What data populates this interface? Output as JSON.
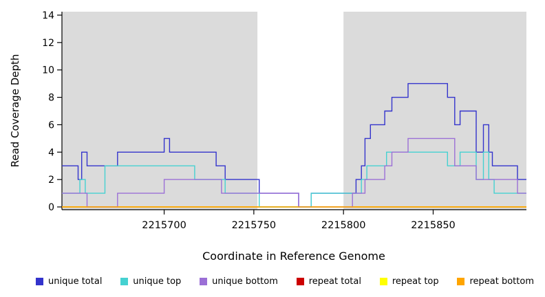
{
  "chart_data": {
    "type": "line",
    "style": "step",
    "title": "",
    "xlabel": "Coordinate in Reference Genome",
    "ylabel": "Read Coverage Depth",
    "xlim": [
      2215643,
      2215902
    ],
    "ylim": [
      0,
      14
    ],
    "yticks": [
      0,
      2,
      4,
      6,
      8,
      10,
      12,
      14
    ],
    "xticks": [
      2215700,
      2215750,
      2215800,
      2215850
    ],
    "grid": false,
    "shade_color": "#DBDBDB",
    "shaded_regions": [
      [
        2215643,
        2215752
      ],
      [
        2215800,
        2215902
      ]
    ],
    "legend_position": "bottom",
    "legend": [
      {
        "label": "unique total",
        "color": "#3333CC"
      },
      {
        "label": "unique top",
        "color": "#45D1D1"
      },
      {
        "label": "unique bottom",
        "color": "#9B6FD6"
      },
      {
        "label": "repeat total",
        "color": "#CC0000"
      },
      {
        "label": "repeat top",
        "color": "#FFFF00"
      },
      {
        "label": "repeat bottom",
        "color": "#FFA500"
      }
    ],
    "series": [
      {
        "name": "repeat total",
        "color": "#CC0000",
        "points": [
          [
            2215643,
            0
          ]
        ]
      },
      {
        "name": "repeat top",
        "color": "#FFFF00",
        "points": [
          [
            2215643,
            0
          ]
        ]
      },
      {
        "name": "unique total",
        "color": "#3333CC",
        "points": [
          [
            2215643,
            3
          ],
          [
            2215652,
            2
          ],
          [
            2215654,
            4
          ],
          [
            2215657,
            3
          ],
          [
            2215674,
            4
          ],
          [
            2215700,
            5
          ],
          [
            2215703,
            4
          ],
          [
            2215729,
            3
          ],
          [
            2215734,
            2
          ],
          [
            2215753,
            1
          ],
          [
            2215775,
            0
          ],
          [
            2215782,
            1
          ],
          [
            2215807,
            2
          ],
          [
            2215810,
            3
          ],
          [
            2215812,
            5
          ],
          [
            2215815,
            6
          ],
          [
            2215823,
            7
          ],
          [
            2215827,
            8
          ],
          [
            2215836,
            9
          ],
          [
            2215858,
            8
          ],
          [
            2215862,
            6
          ],
          [
            2215865,
            7
          ],
          [
            2215874,
            4
          ],
          [
            2215878,
            6
          ],
          [
            2215881,
            4
          ],
          [
            2215883,
            3
          ],
          [
            2215897,
            2
          ]
        ]
      },
      {
        "name": "unique top",
        "color": "#45D1D1",
        "points": [
          [
            2215643,
            1
          ],
          [
            2215653,
            2
          ],
          [
            2215656,
            1
          ],
          [
            2215667,
            3
          ],
          [
            2215717,
            2
          ],
          [
            2215734,
            1
          ],
          [
            2215753,
            0
          ],
          [
            2215782,
            1
          ],
          [
            2215810,
            2
          ],
          [
            2215813,
            3
          ],
          [
            2215824,
            4
          ],
          [
            2215858,
            3
          ],
          [
            2215865,
            4
          ],
          [
            2215874,
            2
          ],
          [
            2215878,
            4
          ],
          [
            2215881,
            2
          ],
          [
            2215884,
            1
          ]
        ]
      },
      {
        "name": "unique bottom",
        "color": "#9B6FD6",
        "points": [
          [
            2215643,
            1
          ],
          [
            2215657,
            0
          ],
          [
            2215674,
            1
          ],
          [
            2215700,
            2
          ],
          [
            2215732,
            1
          ],
          [
            2215775,
            0
          ],
          [
            2215805,
            1
          ],
          [
            2215812,
            2
          ],
          [
            2215823,
            3
          ],
          [
            2215827,
            4
          ],
          [
            2215836,
            5
          ],
          [
            2215862,
            3
          ],
          [
            2215874,
            2
          ],
          [
            2215897,
            1
          ]
        ]
      },
      {
        "name": "repeat bottom",
        "color": "#FFA500",
        "points": [
          [
            2215643,
            0
          ]
        ]
      }
    ]
  }
}
